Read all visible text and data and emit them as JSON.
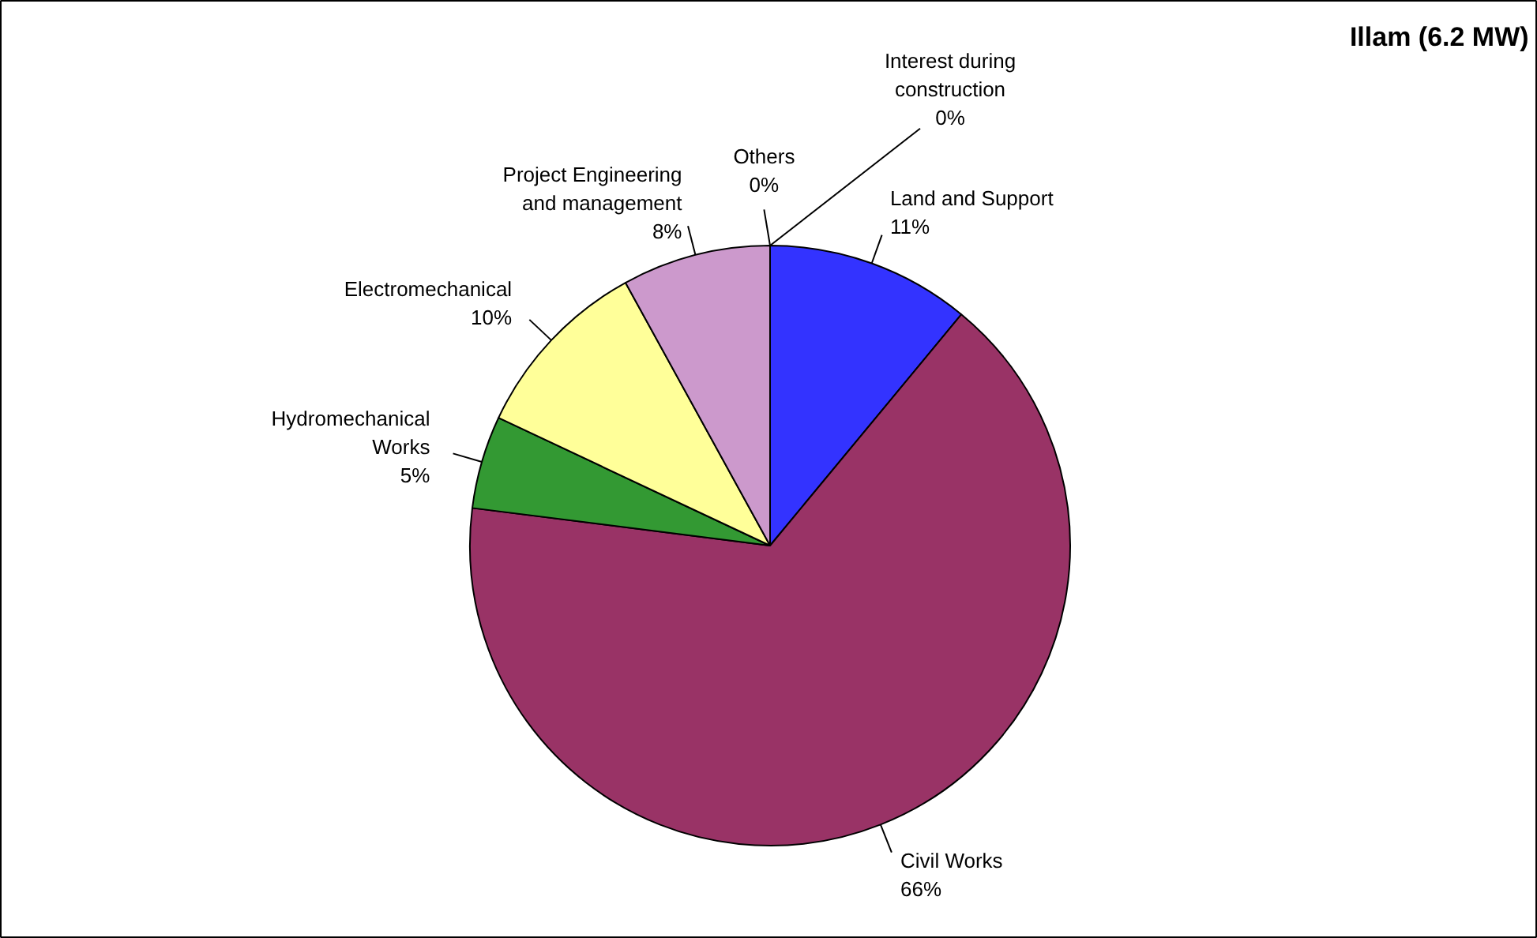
{
  "chart_data": {
    "type": "pie",
    "title": "Illam (6.2 MW)",
    "categories": [
      "Land and Support",
      "Civil Works",
      "Hydromechanical Works",
      "Electromechanical",
      "Project Engineering and management",
      "Others",
      "Interest during construction"
    ],
    "values": [
      11,
      66,
      5,
      10,
      8,
      0,
      0
    ],
    "value_labels": [
      "11%",
      "66%",
      "5%",
      "10%",
      "8%",
      "0%",
      "0%"
    ],
    "colors": [
      "#3333ff",
      "#993366",
      "#339933",
      "#ffff99",
      "#cc99cc",
      "#ff0000",
      "#ff9900"
    ]
  }
}
